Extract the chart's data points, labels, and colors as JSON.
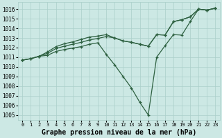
{
  "xlabel": "Graphe pression niveau de la mer (hPa)",
  "background_color": "#cce8e4",
  "grid_color": "#aacfca",
  "line_color": "#2d6040",
  "ylim": [
    1004.5,
    1016.7
  ],
  "xlim": [
    -0.5,
    23.5
  ],
  "yticks": [
    1005,
    1006,
    1007,
    1008,
    1009,
    1010,
    1011,
    1012,
    1013,
    1014,
    1015,
    1016
  ],
  "xticks": [
    0,
    1,
    2,
    3,
    4,
    5,
    6,
    7,
    8,
    9,
    10,
    11,
    12,
    13,
    14,
    15,
    16,
    17,
    18,
    19,
    20,
    21,
    22,
    23
  ],
  "line1": [
    1010.7,
    1010.85,
    1011.1,
    1011.2,
    1011.6,
    1011.8,
    1011.95,
    1012.1,
    1012.35,
    1012.5,
    1011.3,
    1010.2,
    1009.0,
    1007.8,
    1006.3,
    1005.0,
    1011.0,
    1012.2,
    1013.35,
    1013.3,
    1014.7,
    1016.0,
    1015.9,
    1016.1
  ],
  "line2": [
    1010.7,
    1010.85,
    1011.1,
    1011.4,
    1011.9,
    1012.15,
    1012.35,
    1012.55,
    1012.8,
    1012.95,
    1013.15,
    1013.0,
    1012.7,
    1012.55,
    1012.35,
    1012.15,
    1013.35,
    1013.3,
    1014.7,
    1014.9,
    1015.2,
    1016.0,
    1015.9,
    1016.1
  ],
  "line3": [
    1010.7,
    1010.85,
    1011.1,
    1011.55,
    1012.1,
    1012.4,
    1012.6,
    1012.85,
    1013.1,
    1013.2,
    1013.35,
    1013.0,
    1012.7,
    1012.55,
    1012.35,
    1012.15,
    1013.35,
    1013.3,
    1014.7,
    1014.9,
    1015.2,
    1016.0,
    1015.9,
    1016.1
  ],
  "marker": "+",
  "markersize": 3,
  "markeredgewidth": 0.9,
  "linewidth": 0.9,
  "xlabel_fontsize": 7,
  "ytick_fontsize": 5.5,
  "xtick_fontsize": 5.0
}
